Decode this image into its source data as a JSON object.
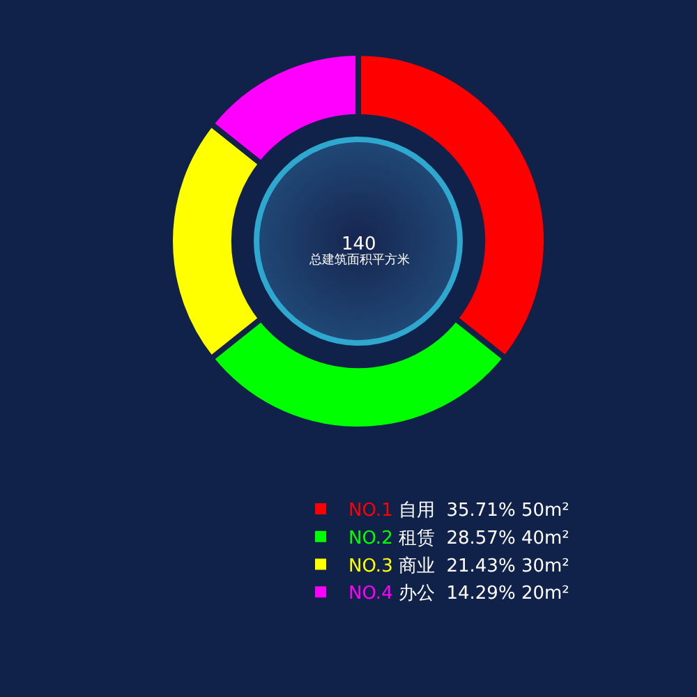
{
  "chart_data": {
    "type": "donut",
    "categories": [
      "NO.1 自用",
      "NO.2 租赁",
      "NO.3 商业",
      "NO.4 办公"
    ],
    "values": [
      35.71,
      28.57,
      21.43,
      14.29
    ],
    "colors": [
      "#ff0000",
      "#00ff00",
      "#ffff00",
      "#ff00ff"
    ],
    "value_labels": [
      "35.71% 50m²",
      "28.57% 40m²",
      "21.43% 30m²",
      "14.29% 20m²"
    ],
    "annotations": [
      "140",
      "总建筑面积平方米"
    ],
    "legend": "bottom"
  }
}
